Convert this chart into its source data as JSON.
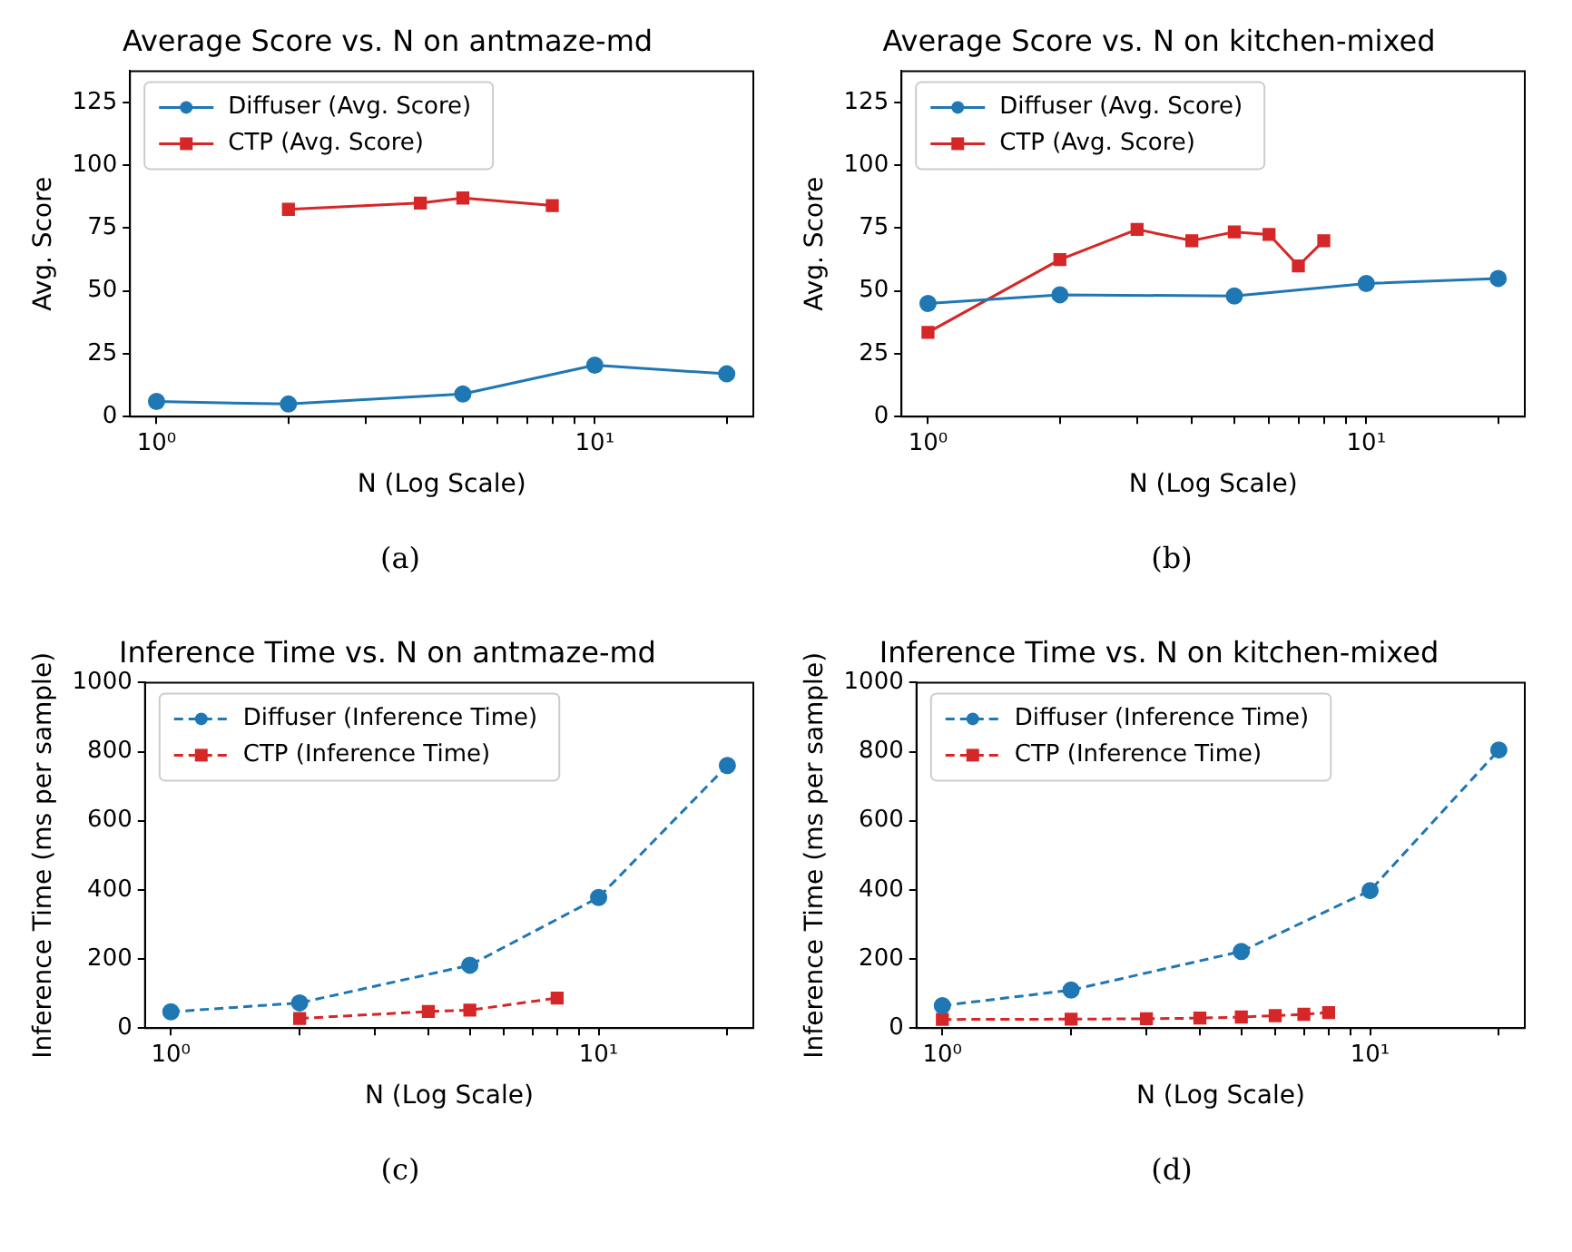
{
  "chart_data": [
    {
      "type": "line",
      "title": "Average Score vs. N on antmaze-md",
      "xlabel": "N (Log Scale)",
      "ylabel": "Avg. Score",
      "log": "x",
      "xlim": [
        0.87,
        23
      ],
      "xticks": [
        {
          "value": 1,
          "label": "10⁰"
        },
        {
          "value": 2,
          "label": null
        },
        {
          "value": 3,
          "label": null
        },
        {
          "value": 4,
          "label": null
        },
        {
          "value": 5,
          "label": null
        },
        {
          "value": 6,
          "label": null
        },
        {
          "value": 7,
          "label": null
        },
        {
          "value": 8,
          "label": null
        },
        {
          "value": 9,
          "label": null
        },
        {
          "value": 10,
          "label": "10¹"
        },
        {
          "value": 20,
          "label": null
        }
      ],
      "ylim": [
        0,
        137.5
      ],
      "yticks": [
        0,
        25,
        50,
        75,
        100,
        125
      ],
      "grid": false,
      "legend": "top left",
      "line_style": "solid",
      "annotations": [
        "(a)"
      ],
      "series": [
        {
          "name": "Diffuser (Avg. Score)",
          "color": "#1f77b4",
          "marker": "circle",
          "x": [
            1,
            2,
            5,
            10,
            20
          ],
          "values": [
            6,
            5,
            9,
            20.5,
            17
          ]
        },
        {
          "name": "CTP (Avg. Score)",
          "color": "#d62728",
          "marker": "square",
          "x": [
            2,
            4,
            5,
            8
          ],
          "values": [
            82.5,
            85,
            87,
            84
          ]
        }
      ]
    },
    {
      "type": "line",
      "title": "Average Score vs. N on kitchen-mixed",
      "xlabel": "N (Log Scale)",
      "ylabel": "Avg. Score",
      "log": "x",
      "xlim": [
        0.87,
        23
      ],
      "xticks": [
        {
          "value": 1,
          "label": "10⁰"
        },
        {
          "value": 2,
          "label": null
        },
        {
          "value": 3,
          "label": null
        },
        {
          "value": 4,
          "label": null
        },
        {
          "value": 5,
          "label": null
        },
        {
          "value": 6,
          "label": null
        },
        {
          "value": 7,
          "label": null
        },
        {
          "value": 8,
          "label": null
        },
        {
          "value": 9,
          "label": null
        },
        {
          "value": 10,
          "label": "10¹"
        },
        {
          "value": 20,
          "label": null
        }
      ],
      "ylim": [
        0,
        137.5
      ],
      "yticks": [
        0,
        25,
        50,
        75,
        100,
        125
      ],
      "grid": false,
      "legend": "top left",
      "line_style": "solid",
      "annotations": [
        "(b)"
      ],
      "series": [
        {
          "name": "Diffuser (Avg. Score)",
          "color": "#1f77b4",
          "marker": "circle",
          "x": [
            1,
            2,
            5,
            10,
            20
          ],
          "values": [
            45,
            48.5,
            48,
            53,
            55
          ]
        },
        {
          "name": "CTP (Avg. Score)",
          "color": "#d62728",
          "marker": "square",
          "x": [
            1,
            2,
            3,
            4,
            5,
            6,
            7,
            8
          ],
          "values": [
            33.5,
            62.5,
            74.5,
            70,
            73.5,
            72.5,
            60,
            70
          ]
        }
      ]
    },
    {
      "type": "line",
      "title": "Inference Time vs. N on antmaze-md",
      "xlabel": "N (Log Scale)",
      "ylabel": "Inference Time (ms per sample)",
      "log": "x",
      "xlim": [
        0.87,
        23
      ],
      "xticks": [
        {
          "value": 1,
          "label": "10⁰"
        },
        {
          "value": 2,
          "label": null
        },
        {
          "value": 3,
          "label": null
        },
        {
          "value": 4,
          "label": null
        },
        {
          "value": 5,
          "label": null
        },
        {
          "value": 6,
          "label": null
        },
        {
          "value": 7,
          "label": null
        },
        {
          "value": 8,
          "label": null
        },
        {
          "value": 9,
          "label": null
        },
        {
          "value": 10,
          "label": "10¹"
        },
        {
          "value": 20,
          "label": null
        }
      ],
      "ylim": [
        0,
        1000
      ],
      "yticks": [
        0,
        200,
        400,
        600,
        800,
        1000
      ],
      "grid": false,
      "legend": "top left",
      "line_style": "dashed",
      "annotations": [
        "(c)"
      ],
      "series": [
        {
          "name": "Diffuser (Inference Time)",
          "color": "#1f77b4",
          "marker": "circle",
          "x": [
            1,
            2,
            5,
            10,
            20
          ],
          "values": [
            47,
            73,
            182,
            378,
            760
          ]
        },
        {
          "name": "CTP (Inference Time)",
          "color": "#d62728",
          "marker": "square",
          "x": [
            2,
            4,
            5,
            8
          ],
          "values": [
            28,
            48,
            52,
            87
          ]
        }
      ]
    },
    {
      "type": "line",
      "title": "Inference Time vs. N on kitchen-mixed",
      "xlabel": "N (Log Scale)",
      "ylabel": "Inference Time (ms per sample)",
      "log": "x",
      "xlim": [
        0.87,
        23
      ],
      "xticks": [
        {
          "value": 1,
          "label": "10⁰"
        },
        {
          "value": 2,
          "label": null
        },
        {
          "value": 3,
          "label": null
        },
        {
          "value": 4,
          "label": null
        },
        {
          "value": 5,
          "label": null
        },
        {
          "value": 6,
          "label": null
        },
        {
          "value": 7,
          "label": null
        },
        {
          "value": 8,
          "label": null
        },
        {
          "value": 9,
          "label": null
        },
        {
          "value": 10,
          "label": "10¹"
        },
        {
          "value": 20,
          "label": null
        }
      ],
      "ylim": [
        0,
        1000
      ],
      "yticks": [
        0,
        200,
        400,
        600,
        800,
        1000
      ],
      "grid": false,
      "legend": "top left",
      "line_style": "dashed",
      "annotations": [
        "(d)"
      ],
      "series": [
        {
          "name": "Diffuser (Inference Time)",
          "color": "#1f77b4",
          "marker": "circle",
          "x": [
            1,
            2,
            5,
            10,
            20
          ],
          "values": [
            65,
            110,
            222,
            398,
            805
          ]
        },
        {
          "name": "CTP (Inference Time)",
          "color": "#d62728",
          "marker": "square",
          "x": [
            1,
            2,
            3,
            4,
            5,
            6,
            7,
            8
          ],
          "values": [
            25,
            26,
            27,
            29,
            32,
            36,
            40,
            45
          ]
        }
      ]
    }
  ]
}
